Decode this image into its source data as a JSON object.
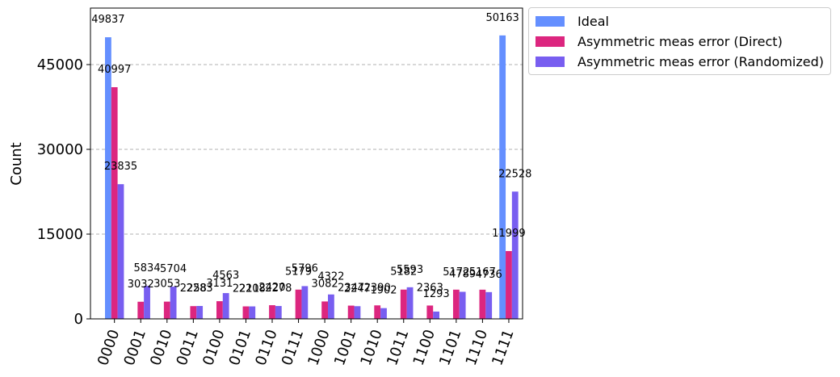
{
  "chart_data": {
    "type": "bar",
    "title": "",
    "xlabel": "",
    "ylabel": "Count",
    "ylim": [
      0,
      55000
    ],
    "yticks": [
      0,
      15000,
      30000,
      45000
    ],
    "categories": [
      "0000",
      "0001",
      "0010",
      "0011",
      "0100",
      "0101",
      "0110",
      "0111",
      "1000",
      "1001",
      "1010",
      "1011",
      "1100",
      "1101",
      "1110",
      "1111"
    ],
    "grid": "horizontal dashed",
    "legend_position": "outside-top-right",
    "series": [
      {
        "name": "Ideal",
        "color": "#648fff",
        "values": [
          49837,
          0,
          0,
          0,
          0,
          0,
          0,
          0,
          0,
          0,
          0,
          0,
          0,
          0,
          0,
          50163
        ]
      },
      {
        "name": "Asymmetric meas error (Direct)",
        "color": "#dc267f",
        "values": [
          40997,
          3032,
          3053,
          2258,
          3131,
          2211,
          2420,
          5179,
          3082,
          2347,
          2390,
          5182,
          2363,
          5172,
          5167,
          11999
        ]
      },
      {
        "name": "Asymmetric meas error (Randomized)",
        "color": "#785ef0",
        "values": [
          23835,
          5834,
          5704,
          2283,
          4563,
          2208,
          2278,
          5796,
          4322,
          2247,
          1902,
          5593,
          1293,
          4789,
          4736,
          22528
        ]
      }
    ]
  }
}
